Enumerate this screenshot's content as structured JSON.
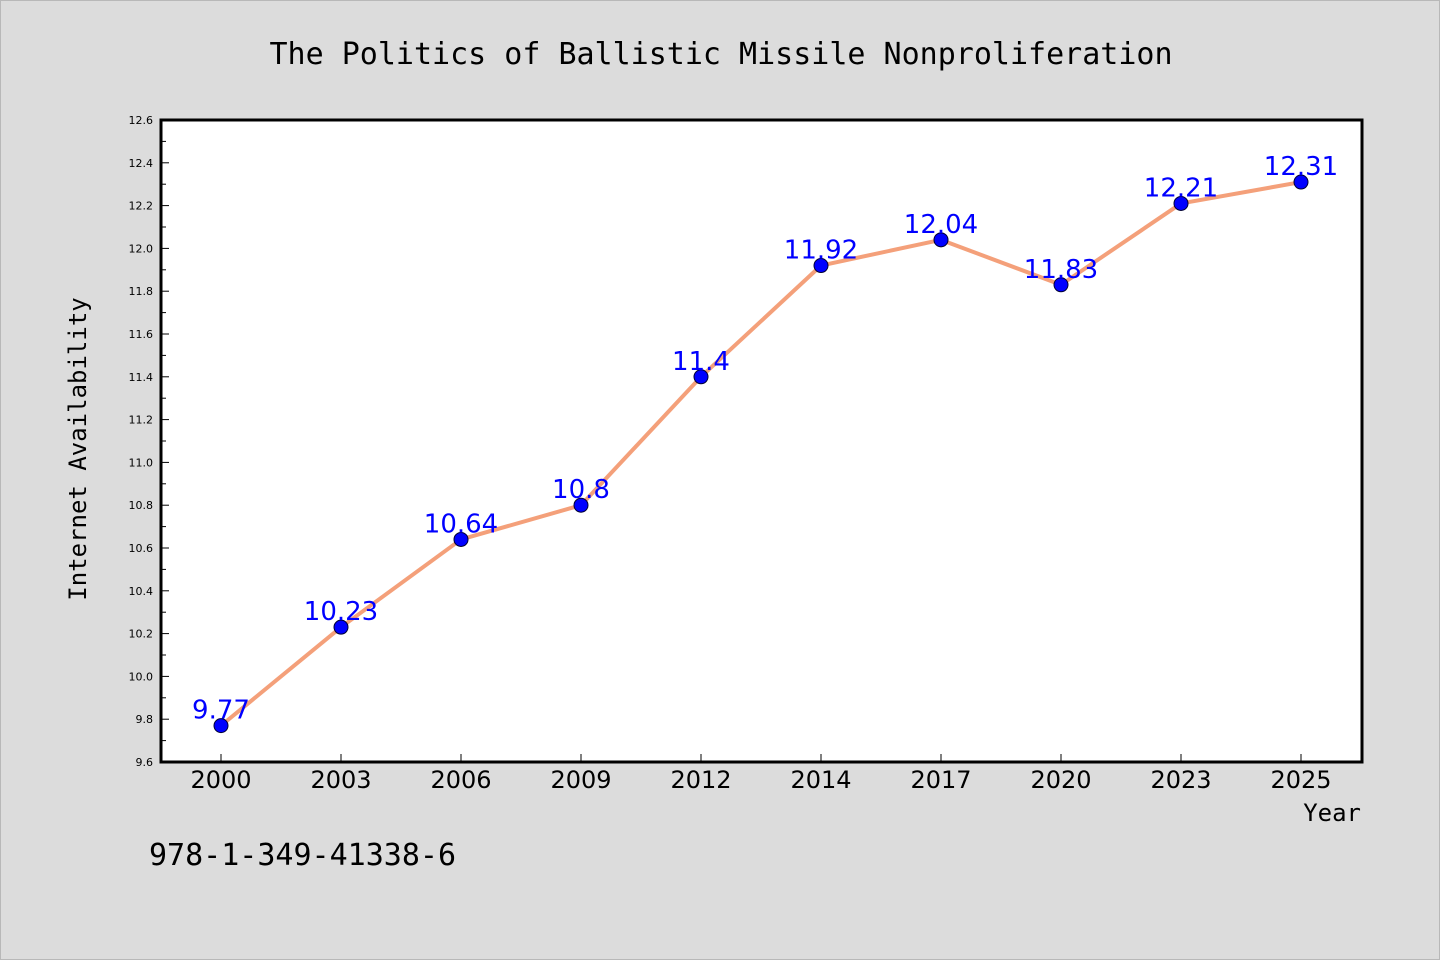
{
  "chart_data": {
    "type": "line",
    "title": "The Politics of Ballistic Missile Nonproliferation",
    "xlabel": "Year",
    "ylabel": "Internet Availability",
    "categories": [
      "2000",
      "2003",
      "2006",
      "2009",
      "2012",
      "2014",
      "2017",
      "2020",
      "2023",
      "2025"
    ],
    "series": [
      {
        "values": [
          9.77,
          10.23,
          10.64,
          10.8,
          11.4,
          11.92,
          12.04,
          11.83,
          12.21,
          12.31
        ],
        "data_labels": [
          "9.77",
          "10.23",
          "10.64",
          "10.8",
          "11.4",
          "11.92",
          "12.04",
          "11.83",
          "12.21",
          "12.31"
        ]
      }
    ],
    "ylim": [
      9.6,
      12.6
    ],
    "yticks": [
      "9.6",
      "9.8",
      "10.0",
      "10.2",
      "10.4",
      "10.6",
      "10.8",
      "11.0",
      "11.2",
      "11.4",
      "11.6",
      "11.8",
      "12.0",
      "12.2",
      "12.4",
      "12.6"
    ],
    "grid": false,
    "legend": "none",
    "colors": {
      "line": "#f4a07a",
      "marker": "#0000ff",
      "data_label": "#0000ff",
      "background": "#dcdcdc",
      "plot_background": "#ffffff"
    }
  },
  "footer": {
    "isbn": "978-1-349-41338-6"
  }
}
